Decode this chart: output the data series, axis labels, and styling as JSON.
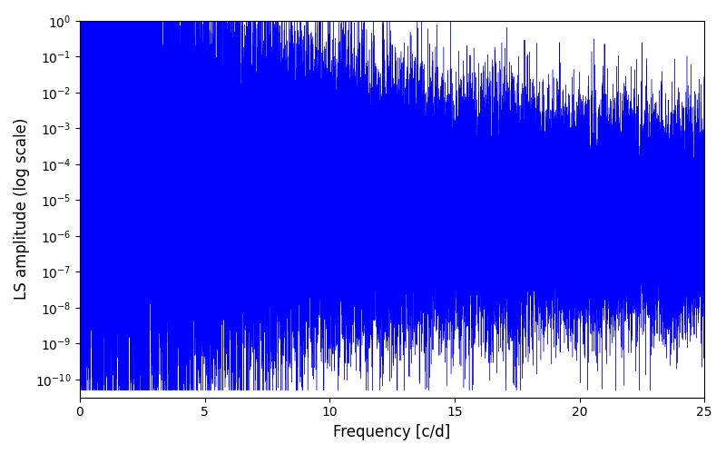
{
  "title": "",
  "xlabel": "Frequency [c/d]",
  "ylabel": "LS amplitude (log scale)",
  "xlim": [
    0,
    25
  ],
  "ylim_log_min": -10.5,
  "ylim_log_max": 0,
  "line_color": "#0000FF",
  "line_width": 0.3,
  "figsize": [
    8.0,
    5.0
  ],
  "dpi": 100,
  "yscale": "log",
  "seed": 12345,
  "n_points": 50000,
  "freq_max": 25.0,
  "background_color": "#ffffff",
  "xticks": [
    0,
    5,
    10,
    15,
    20,
    25
  ]
}
